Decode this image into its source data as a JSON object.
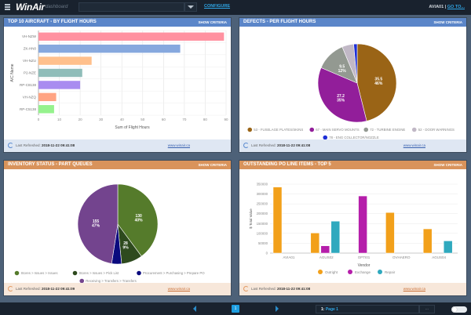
{
  "header": {
    "app_name": "WinAir",
    "app_sub": "dashboard",
    "configure_label": "CONFIGURE",
    "user": "AVIA01",
    "goto_label": "GO TO..."
  },
  "panels": [
    {
      "title": "TOP 10 AIRCRAFT - BY FLIGHT HOURS",
      "criteria": "SHOW CRITERIA",
      "refreshed_label": "Last Refreshed:",
      "refreshed": "2018-11-22 09:41:08",
      "link": "www.winair.ca"
    },
    {
      "title": "DEFECTS - PER FLIGHT HOURS",
      "criteria": "SHOW CRITERIA",
      "refreshed_label": "Last Refreshed:",
      "refreshed": "2018-11-22 09:41:08",
      "link": "www.winair.ca"
    },
    {
      "title": "INVENTORY STATUS - PART QUEUES",
      "criteria": "SHOW CRITERIA",
      "refreshed_label": "Last Refreshed:",
      "refreshed": "2018-11-22 09:41:09",
      "link": "www.winair.ca"
    },
    {
      "title": "OUTSTANDING PO LINE ITEMS - TOP 5",
      "criteria": "SHOW CRITERIA",
      "refreshed_label": "Last Refreshed:",
      "refreshed": "2018-11-22 09:41:08",
      "link": "www.winair.ca"
    }
  ],
  "footer": {
    "page_number": "1",
    "page_prefix": "1:",
    "page_name": "Page 1",
    "more": "..."
  },
  "chart_data": [
    {
      "type": "bar",
      "orientation": "horizontal",
      "title": "TOP 10 AIRCRAFT - BY FLIGHT HOURS",
      "xlabel": "Sum of Flight Hours",
      "ylabel": "A/C Name",
      "categories": [
        "VH-NZW",
        "ZK-HN0",
        "VH-NZU",
        "P2-NZE",
        "RP-C8138",
        "VH-NZQ",
        "RP-C5138"
      ],
      "values": [
        89,
        68,
        25.5,
        21,
        20,
        8.5,
        7.5
      ],
      "colors": [
        "#ff91a0",
        "#86a8de",
        "#ffc08c",
        "#8fbdb9",
        "#a98cf0",
        "#ffa483",
        "#95f28d"
      ],
      "xlim": [
        0,
        90
      ],
      "xticks": [
        0,
        10,
        20,
        30,
        40,
        50,
        60,
        70,
        80,
        90
      ]
    },
    {
      "type": "pie",
      "title": "DEFECTS - PER FLIGHT HOURS",
      "slices": [
        {
          "label": "53 - FUSELAGE PLATES/SKINS",
          "value": 35.5,
          "pct": "46%",
          "color": "#9a6416",
          "show": true
        },
        {
          "label": "67 - MAIN SERVO MOUNTS",
          "value": 27.2,
          "pct": "35%",
          "color": "#921e9a",
          "show": true
        },
        {
          "label": "72 - TURBINE ENGINE",
          "value": 9.5,
          "pct": "12%",
          "color": "#939991",
          "show": true
        },
        {
          "label": "52 - DOOR WARNINGS",
          "value": 3.7,
          "pct": "5%",
          "color": "#c1b8c6",
          "show": false
        },
        {
          "label": "78 - ENG COLLECTOR/NOZZLE",
          "value": 1.1,
          "pct": "1%",
          "color": "#1e2fd6",
          "show": false
        }
      ]
    },
    {
      "type": "pie",
      "title": "INVENTORY STATUS - PART QUEUES",
      "slices": [
        {
          "label": "Stores > Issues > Issues",
          "value": 130,
          "pct": "40%",
          "color": "#557b2b",
          "show": true
        },
        {
          "label": "Stores > Issues > Pick List",
          "value": 28,
          "pct": "9%",
          "color": "#2e4a1e",
          "show": true
        },
        {
          "label": "Procurement > Purchasing > Prepare PO",
          "value": 13,
          "pct": "4%",
          "color": "#0a0a7e",
          "show": false
        },
        {
          "label": "Receiving > Transfers > Transfers",
          "value": 155,
          "pct": "47%",
          "color": "#73448e",
          "show": true
        }
      ]
    },
    {
      "type": "bar",
      "title": "OUTSTANDING PO LINE ITEMS - TOP 5",
      "xlabel": "Vendor",
      "ylabel": "$ Total Value",
      "categories": [
        "AVIA01",
        "AGUS02",
        "OPTI01",
        "OVHAERO",
        "AGUS04"
      ],
      "ylim": [
        0,
        350000
      ],
      "yticks": [
        0,
        50000,
        100000,
        150000,
        200000,
        250000,
        300000,
        350000
      ],
      "series": [
        {
          "name": "Outright",
          "color": "#f2a01a",
          "values": [
            335000,
            102000,
            0,
            206000,
            123000
          ]
        },
        {
          "name": "Exchange",
          "color": "#b51eaa",
          "values": [
            0,
            37000,
            290000,
            0,
            0
          ]
        },
        {
          "name": "Repair",
          "color": "#2fa9be",
          "values": [
            0,
            162000,
            0,
            0,
            62000
          ]
        }
      ]
    }
  ]
}
